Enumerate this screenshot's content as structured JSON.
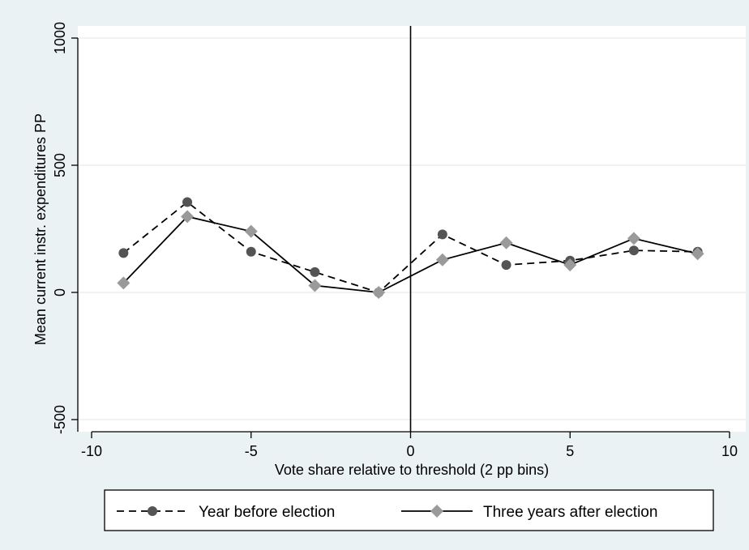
{
  "chart_data": {
    "type": "line",
    "title": "",
    "xlabel": "Vote share relative to threshold (2 pp bins)",
    "ylabel": "Mean current instr. expenditures PP",
    "xlim": [
      -10,
      10
    ],
    "ylim": [
      -500,
      1000
    ],
    "x_ticks": [
      -10,
      -5,
      0,
      5,
      10
    ],
    "y_ticks": [
      -500,
      0,
      500,
      1000
    ],
    "grid": "horizontal",
    "threshold_line_x": 0,
    "legend_position": "bottom",
    "x": [
      -9,
      -7,
      -5,
      -3,
      -1,
      1,
      3,
      5,
      7,
      9
    ],
    "series": [
      {
        "name": "Year before election",
        "values": [
          155,
          355,
          160,
          80,
          0,
          228,
          108,
          125,
          165,
          160
        ],
        "line_style": "dashed",
        "marker": "circle",
        "color": "#545454"
      },
      {
        "name": "Three years after election",
        "values": [
          37,
          298,
          240,
          27,
          0,
          128,
          195,
          108,
          212,
          152
        ],
        "line_style": "solid",
        "marker": "diamond",
        "color": "#9a9a9a"
      }
    ]
  }
}
